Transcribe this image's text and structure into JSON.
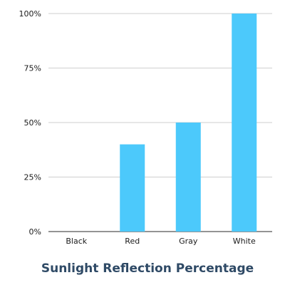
{
  "chart_data": {
    "type": "bar",
    "title": "Sunlight Reflection Percentage",
    "xlabel": "",
    "ylabel": "",
    "categories": [
      "Black",
      "Red",
      "Gray",
      "White"
    ],
    "values": [
      0,
      40,
      50,
      100
    ],
    "ylim": [
      0,
      100
    ],
    "y_ticks": [
      0,
      25,
      50,
      75,
      100
    ],
    "y_tick_labels": [
      "0%",
      "25%",
      "50%",
      "75%",
      "100%"
    ],
    "grid": true,
    "legend": "none",
    "colors": {
      "bar": "#4cc9fb",
      "title": "#2f4a66",
      "grid": "#cfcfcf",
      "axis": "#555555"
    }
  }
}
